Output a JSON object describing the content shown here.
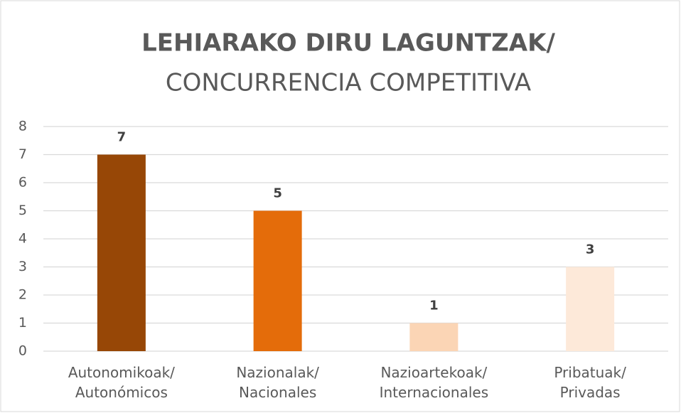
{
  "chart_data": {
    "type": "bar",
    "title": "LEHIARAKO DIRU LAGUNTZAK/",
    "subtitle": "CONCURRENCIA COMPETITIVA",
    "categories": [
      "Autonomikoak/\nAutonómicos",
      "Nazionalak/\nNacionales",
      "Nazioartekoak/\nInternacionales",
      "Pribatuak/\nPrivadas"
    ],
    "values": [
      7,
      5,
      1,
      3
    ],
    "colors": [
      "#974706",
      "#e46c0a",
      "#fbd5b5",
      "#fde9d9"
    ],
    "ylim": [
      0,
      8
    ],
    "yticks": [
      0,
      1,
      2,
      3,
      4,
      5,
      6,
      7,
      8
    ],
    "grid": true,
    "data_labels": true
  }
}
